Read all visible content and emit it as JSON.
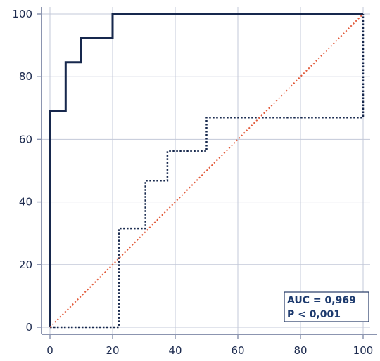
{
  "chart_data": {
    "type": "line",
    "title": "",
    "xlabel": "",
    "ylabel": "",
    "xlim": [
      0,
      100
    ],
    "ylim": [
      0,
      100
    ],
    "x_ticks": [
      "0",
      "20",
      "40",
      "60",
      "80",
      "100"
    ],
    "y_ticks": [
      "0",
      "20",
      "40",
      "60",
      "80",
      "100"
    ],
    "grid": true,
    "series": [
      {
        "style": "solid-step",
        "color": "#17284d",
        "points": [
          [
            0,
            0
          ],
          [
            0,
            69
          ],
          [
            5,
            69
          ],
          [
            5,
            84.6
          ],
          [
            10,
            84.6
          ],
          [
            10,
            92.3
          ],
          [
            20,
            92.3
          ],
          [
            20,
            100
          ],
          [
            100,
            100
          ]
        ]
      },
      {
        "style": "dotted-step",
        "color": "#17284d",
        "points": [
          [
            0,
            0
          ],
          [
            22,
            0
          ],
          [
            22,
            31.6
          ],
          [
            30.5,
            31.6
          ],
          [
            30.5,
            46.8
          ],
          [
            37.5,
            46.8
          ],
          [
            37.5,
            56.2
          ],
          [
            50,
            56.2
          ],
          [
            50,
            67
          ],
          [
            100,
            67
          ],
          [
            100,
            100
          ]
        ]
      },
      {
        "style": "reference-diagonal",
        "color": "#e25a3a",
        "points": [
          [
            0,
            0
          ],
          [
            100,
            100
          ]
        ]
      }
    ],
    "annotations": [
      "AUC = 0,969",
      "P < 0,001"
    ],
    "colors": {
      "axis": "#8c95b0",
      "grid": "#c3c8d8",
      "text": "#1d2b4f"
    }
  }
}
